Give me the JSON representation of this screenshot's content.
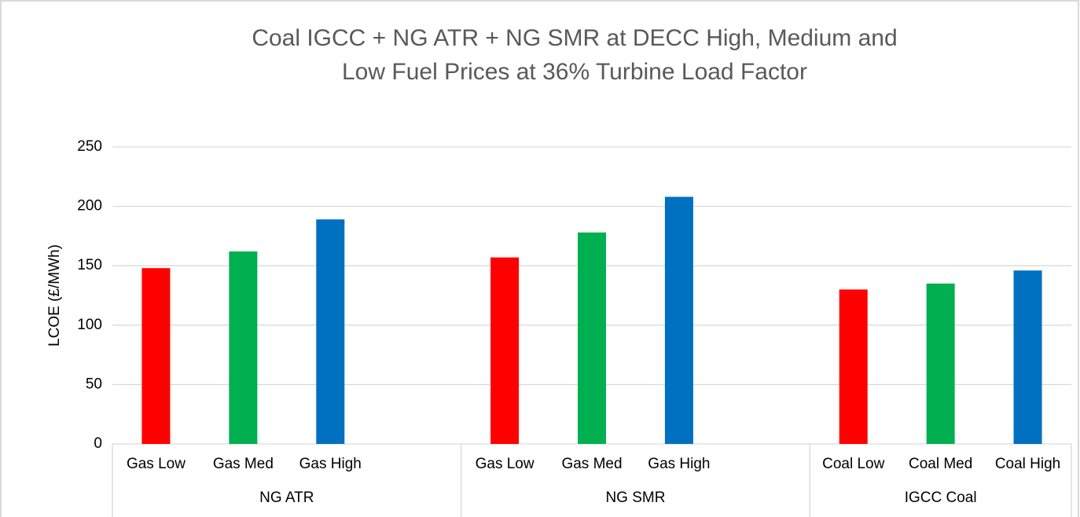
{
  "chart_data": {
    "type": "bar",
    "title": [
      "Coal IGCC + NG ATR + NG SMR at DECC High, Medium and",
      "Low Fuel Prices at 36% Turbine Load Factor"
    ],
    "ylabel": "LCOE (£/MWh)",
    "groups": [
      {
        "label": "NG ATR",
        "categories": [
          "Gas Low",
          "Gas Med",
          "Gas High",
          null
        ],
        "values": [
          148,
          162,
          189,
          null
        ]
      },
      {
        "label": "NG SMR",
        "categories": [
          "Gas Low",
          "Gas Med",
          "Gas High",
          null
        ],
        "values": [
          157,
          178,
          208,
          null
        ]
      },
      {
        "label": "IGCC Coal",
        "categories": [
          "Coal Low",
          "Coal Med",
          "Coal High"
        ],
        "values": [
          130,
          135,
          146
        ]
      }
    ],
    "colors": [
      "#ff0000",
      "#00b050",
      "#0070c0"
    ],
    "ylim": [
      0,
      250
    ],
    "yticks": [
      0,
      50,
      100,
      150,
      200,
      250
    ],
    "grid": true
  }
}
